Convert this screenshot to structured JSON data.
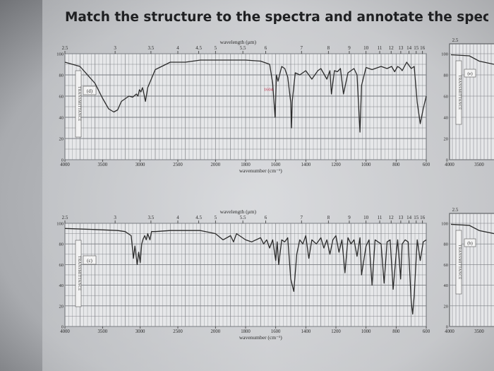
{
  "header": {
    "title": "Match the structure to the spectra and annotate the spectra of th"
  },
  "colors": {
    "grid": "#7a7d82",
    "trace": "#2b2b2b",
    "paper": "#e6e7e9",
    "annotation": "#c0304c"
  },
  "chart_data": [
    {
      "type": "line",
      "panel_label": "(d)",
      "top_axis_label": "wavelength (μm)",
      "xlabel": "wavenumber (cm⁻¹)",
      "ylabel": "TRANSMITTANCE",
      "wavelength_ticks": [
        "2.5",
        "3",
        "3.5",
        "4",
        "4.5",
        "5",
        "5.5",
        "6",
        "7",
        "8",
        "9",
        "10",
        "11",
        "12",
        "13",
        "14",
        "15",
        "16"
      ],
      "wavenumber_ticks": [
        "4000",
        "3500",
        "3000",
        "2500",
        "2000",
        "1800",
        "1600",
        "1400",
        "1200",
        "1000",
        "800",
        "600"
      ],
      "y_ticks": [
        "100",
        "80",
        "60",
        "40",
        "20",
        "0"
      ],
      "ylim": [
        0,
        100
      ],
      "xlim": [
        4000,
        600
      ],
      "annotations": [
        {
          "text": "1604",
          "x": 1604,
          "y": 65
        }
      ],
      "x": [
        4000,
        3800,
        3600,
        3500,
        3420,
        3350,
        3300,
        3250,
        3150,
        3100,
        3050,
        3030,
        3010,
        2990,
        2970,
        2950,
        2930,
        2900,
        2800,
        2600,
        2400,
        2200,
        2000,
        1900,
        1800,
        1700,
        1640,
        1620,
        1604,
        1595,
        1585,
        1560,
        1540,
        1520,
        1500,
        1495,
        1490,
        1470,
        1440,
        1400,
        1360,
        1320,
        1300,
        1260,
        1240,
        1230,
        1210,
        1190,
        1170,
        1150,
        1120,
        1080,
        1060,
        1040,
        1030,
        1000,
        960,
        900,
        860,
        830,
        810,
        790,
        770,
        760,
        730,
        700,
        680,
        660,
        640,
        620,
        600
      ],
      "y": [
        92,
        88,
        72,
        58,
        48,
        45,
        47,
        55,
        60,
        59,
        62,
        60,
        66,
        64,
        68,
        62,
        55,
        68,
        85,
        92,
        92,
        94,
        94,
        94,
        94,
        93,
        90,
        72,
        40,
        80,
        74,
        88,
        86,
        78,
        54,
        30,
        55,
        82,
        80,
        84,
        76,
        84,
        86,
        76,
        84,
        62,
        84,
        83,
        86,
        62,
        82,
        86,
        80,
        26,
        70,
        87,
        85,
        88,
        86,
        88,
        83,
        88,
        86,
        84,
        92,
        86,
        88,
        54,
        34,
        48,
        60
      ]
    },
    {
      "type": "line",
      "panel_label": "(c)",
      "top_axis_label": "wavelength (μm)",
      "xlabel": "wavenumber (cm⁻¹)",
      "ylabel": "TRANSMITTANCE",
      "wavelength_ticks": [
        "2.5",
        "3",
        "3.5",
        "4",
        "4.5",
        "5",
        "5.5",
        "6",
        "7",
        "8",
        "9",
        "10",
        "11",
        "12",
        "13",
        "14",
        "15",
        "16"
      ],
      "wavenumber_ticks": [
        "4000",
        "3500",
        "3000",
        "2500",
        "2000",
        "1800",
        "1600",
        "1400",
        "1200",
        "1000",
        "800",
        "600"
      ],
      "y_ticks": [
        "100",
        "80",
        "60",
        "40",
        "20",
        "0"
      ],
      "ylim": [
        0,
        100
      ],
      "xlim": [
        4000,
        600
      ],
      "x": [
        4000,
        3600,
        3300,
        3200,
        3120,
        3090,
        3070,
        3040,
        3020,
        3000,
        2980,
        2960,
        2940,
        2920,
        2900,
        2870,
        2850,
        2800,
        2600,
        2400,
        2200,
        2000,
        1950,
        1900,
        1880,
        1860,
        1800,
        1760,
        1700,
        1680,
        1660,
        1640,
        1620,
        1600,
        1590,
        1580,
        1560,
        1540,
        1520,
        1500,
        1480,
        1460,
        1440,
        1420,
        1400,
        1380,
        1360,
        1330,
        1300,
        1280,
        1260,
        1240,
        1220,
        1200,
        1180,
        1160,
        1140,
        1120,
        1100,
        1080,
        1060,
        1040,
        1030,
        1000,
        980,
        960,
        940,
        920,
        900,
        880,
        860,
        840,
        820,
        800,
        790,
        770,
        760,
        740,
        720,
        700,
        690,
        680,
        660,
        640,
        620,
        600
      ],
      "y": [
        95,
        94,
        93,
        92,
        88,
        66,
        78,
        60,
        72,
        62,
        80,
        85,
        88,
        84,
        90,
        84,
        92,
        92,
        93,
        93,
        93,
        90,
        84,
        88,
        82,
        90,
        84,
        82,
        86,
        80,
        84,
        76,
        84,
        64,
        82,
        60,
        84,
        82,
        86,
        46,
        34,
        70,
        84,
        80,
        88,
        66,
        84,
        80,
        86,
        76,
        84,
        70,
        84,
        88,
        72,
        84,
        52,
        86,
        80,
        84,
        68,
        86,
        50,
        78,
        84,
        40,
        84,
        82,
        80,
        42,
        82,
        84,
        36,
        70,
        84,
        46,
        80,
        84,
        82,
        24,
        12,
        30,
        84,
        64,
        82,
        84
      ]
    }
  ]
}
